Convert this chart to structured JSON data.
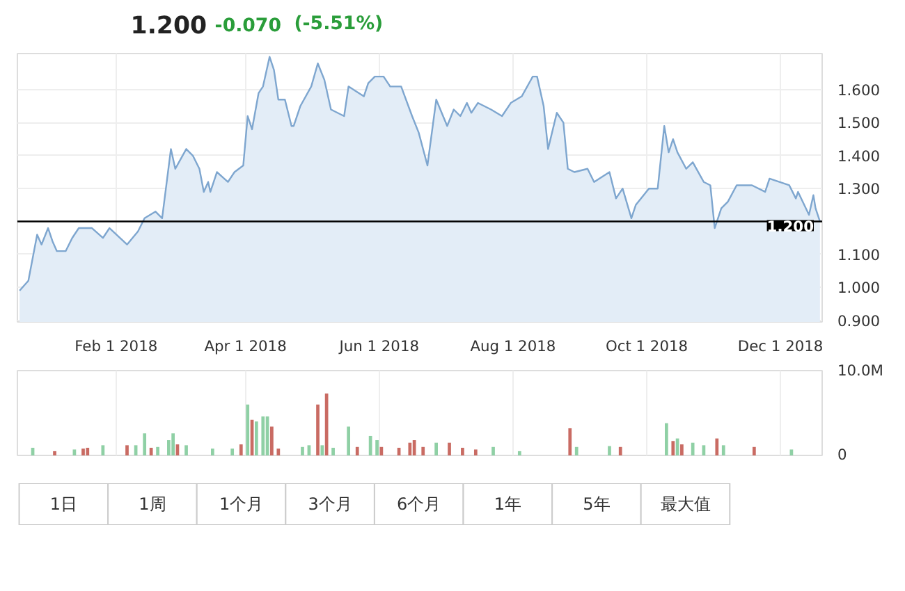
{
  "chart_data": [
    {
      "type": "area",
      "annotations": [
        "1.200",
        "-0.070",
        "(-5.51%)"
      ],
      "xlim": [
        "2017-12-18",
        "2018-12-20"
      ],
      "xticks": [
        {
          "value": "2018-02-01",
          "label": "Feb 1 2018"
        },
        {
          "value": "2018-04-01",
          "label": "Apr 1 2018"
        },
        {
          "value": "2018-06-01",
          "label": "Jun 1 2018"
        },
        {
          "value": "2018-08-01",
          "label": "Aug 1 2018"
        },
        {
          "value": "2018-10-01",
          "label": "Oct 1 2018"
        },
        {
          "value": "2018-12-01",
          "label": "Dec 1 2018"
        }
      ],
      "ylim": [
        0.895,
        1.71
      ],
      "yticks": [
        {
          "value": 0.9,
          "label": "0.900"
        },
        {
          "value": 1.0,
          "label": "1.000"
        },
        {
          "value": 1.1,
          "label": "1.100"
        },
        {
          "value": 1.3,
          "label": "1.300"
        },
        {
          "value": 1.4,
          "label": "1.400"
        },
        {
          "value": 1.5,
          "label": "1.500"
        },
        {
          "value": 1.6,
          "label": "1.600"
        }
      ],
      "grid": true,
      "ref_lines": [
        {
          "axis": "y",
          "value": 1.2,
          "label": "1.200",
          "color": "#000000"
        }
      ],
      "series": [
        {
          "color": "#7ea6cf",
          "x": [
            "2017-12-19",
            "2017-12-23",
            "2017-12-27",
            "2017-12-29",
            "2018-01-01",
            "2018-01-03",
            "2018-01-05",
            "2018-01-09",
            "2018-01-12",
            "2018-01-15",
            "2018-01-21",
            "2018-01-26",
            "2018-01-29",
            "2018-02-06",
            "2018-02-11",
            "2018-02-14",
            "2018-02-19",
            "2018-02-22",
            "2018-02-26",
            "2018-02-28",
            "2018-03-05",
            "2018-03-08",
            "2018-03-11",
            "2018-03-13",
            "2018-03-15",
            "2018-03-16",
            "2018-03-19",
            "2018-03-24",
            "2018-03-27",
            "2018-03-31",
            "2018-04-02",
            "2018-04-04",
            "2018-04-07",
            "2018-04-09",
            "2018-04-12",
            "2018-04-14",
            "2018-04-16",
            "2018-04-19",
            "2018-04-22",
            "2018-04-23",
            "2018-04-26",
            "2018-05-01",
            "2018-05-04",
            "2018-05-07",
            "2018-05-10",
            "2018-05-13",
            "2018-05-16",
            "2018-05-18",
            "2018-05-25",
            "2018-05-27",
            "2018-05-30",
            "2018-06-03",
            "2018-06-06",
            "2018-06-11",
            "2018-06-16",
            "2018-06-19",
            "2018-06-23",
            "2018-06-27",
            "2018-07-02",
            "2018-07-05",
            "2018-07-08",
            "2018-07-11",
            "2018-07-13",
            "2018-07-16",
            "2018-07-22",
            "2018-07-27",
            "2018-07-31",
            "2018-08-05",
            "2018-08-10",
            "2018-08-12",
            "2018-08-15",
            "2018-08-17",
            "2018-08-21",
            "2018-08-24",
            "2018-08-26",
            "2018-08-29",
            "2018-09-04",
            "2018-09-07",
            "2018-09-14",
            "2018-09-17",
            "2018-09-20",
            "2018-09-24",
            "2018-09-26",
            "2018-10-02",
            "2018-10-06",
            "2018-10-09",
            "2018-10-11",
            "2018-10-13",
            "2018-10-15",
            "2018-10-19",
            "2018-10-22",
            "2018-10-27",
            "2018-10-30",
            "2018-11-01",
            "2018-11-04",
            "2018-11-07",
            "2018-11-11",
            "2018-11-18",
            "2018-11-24",
            "2018-11-26",
            "2018-12-05",
            "2018-12-08",
            "2018-12-09",
            "2018-12-14",
            "2018-12-16",
            "2018-12-17",
            "2018-12-19"
          ],
          "values": [
            0.99,
            1.02,
            1.16,
            1.13,
            1.18,
            1.14,
            1.11,
            1.11,
            1.15,
            1.18,
            1.18,
            1.15,
            1.18,
            1.13,
            1.17,
            1.21,
            1.23,
            1.21,
            1.42,
            1.36,
            1.42,
            1.4,
            1.36,
            1.29,
            1.32,
            1.29,
            1.35,
            1.32,
            1.35,
            1.37,
            1.52,
            1.48,
            1.59,
            1.61,
            1.7,
            1.66,
            1.57,
            1.57,
            1.49,
            1.49,
            1.55,
            1.61,
            1.68,
            1.63,
            1.54,
            1.53,
            1.52,
            1.61,
            1.58,
            1.62,
            1.64,
            1.64,
            1.61,
            1.61,
            1.52,
            1.47,
            1.37,
            1.57,
            1.49,
            1.54,
            1.52,
            1.56,
            1.53,
            1.56,
            1.54,
            1.52,
            1.56,
            1.58,
            1.64,
            1.64,
            1.55,
            1.42,
            1.53,
            1.5,
            1.36,
            1.35,
            1.36,
            1.32,
            1.35,
            1.27,
            1.3,
            1.21,
            1.25,
            1.3,
            1.3,
            1.49,
            1.41,
            1.45,
            1.41,
            1.36,
            1.38,
            1.32,
            1.31,
            1.18,
            1.24,
            1.26,
            1.31,
            1.31,
            1.29,
            1.33,
            1.31,
            1.27,
            1.29,
            1.22,
            1.28,
            1.24,
            1.2
          ]
        }
      ]
    },
    {
      "type": "bar",
      "tick_labels": "y",
      "grid": true,
      "xlim": [
        "2017-12-18",
        "2018-12-20"
      ],
      "xticks": [
        {
          "value": "2018-02-01",
          "label": null
        },
        {
          "value": "2018-04-01",
          "label": null
        },
        {
          "value": "2018-06-01",
          "label": null
        },
        {
          "value": "2018-08-01",
          "label": null
        },
        {
          "value": "2018-10-01",
          "label": null
        },
        {
          "value": "2018-12-01",
          "label": null
        }
      ],
      "ylim": [
        0,
        10
      ],
      "yticks": [
        0,
        {
          "value": 10,
          "label": "10.0M"
        }
      ],
      "x": [
        "2017-12-25",
        "2018-01-04",
        "2018-01-13",
        "2018-01-17",
        "2018-01-19",
        "2018-01-26",
        "2018-02-06",
        "2018-02-10",
        "2018-02-14",
        "2018-02-17",
        "2018-02-20",
        "2018-02-25",
        "2018-02-27",
        "2018-03-01",
        "2018-03-05",
        "2018-03-17",
        "2018-03-26",
        "2018-03-30",
        "2018-04-02",
        "2018-04-04",
        "2018-04-06",
        "2018-04-09",
        "2018-04-11",
        "2018-04-13",
        "2018-04-16",
        "2018-04-27",
        "2018-04-30",
        "2018-05-04",
        "2018-05-06",
        "2018-05-08",
        "2018-05-11",
        "2018-05-18",
        "2018-05-22",
        "2018-05-28",
        "2018-05-31",
        "2018-06-02",
        "2018-06-10",
        "2018-06-15",
        "2018-06-17",
        "2018-06-21",
        "2018-06-27",
        "2018-07-03",
        "2018-07-09",
        "2018-07-15",
        "2018-07-23",
        "2018-08-04",
        "2018-08-27",
        "2018-08-30",
        "2018-09-14",
        "2018-09-19",
        "2018-10-10",
        "2018-10-13",
        "2018-10-15",
        "2018-10-17",
        "2018-10-22",
        "2018-10-27",
        "2018-11-02",
        "2018-11-05",
        "2018-11-19",
        "2018-12-06"
      ],
      "values": [
        0.9,
        0.5,
        0.7,
        0.8,
        0.9,
        1.2,
        1.2,
        1.2,
        2.6,
        0.9,
        1.0,
        1.8,
        2.6,
        1.3,
        1.2,
        0.8,
        0.8,
        1.3,
        6.0,
        4.2,
        4.0,
        4.6,
        4.6,
        3.4,
        0.8,
        1.0,
        1.2,
        6.0,
        1.2,
        7.3,
        0.9,
        3.4,
        1.0,
        2.3,
        1.8,
        1.0,
        0.9,
        1.5,
        1.8,
        1.0,
        1.5,
        1.5,
        0.9,
        0.7,
        1.0,
        0.5,
        3.2,
        1.0,
        1.1,
        1.0,
        3.8,
        1.7,
        2.0,
        1.3,
        1.5,
        1.2,
        2.0,
        1.2,
        1.0,
        0.7
      ],
      "colors": [
        "#8fd0a5",
        "#c96b63",
        "#8fd0a5",
        "#c96b63",
        "#c96b63",
        "#8fd0a5",
        "#c96b63",
        "#8fd0a5",
        "#8fd0a5",
        "#c96b63",
        "#8fd0a5",
        "#8fd0a5",
        "#8fd0a5",
        "#c96b63",
        "#8fd0a5",
        "#8fd0a5",
        "#8fd0a5",
        "#c96b63",
        "#8fd0a5",
        "#c96b63",
        "#8fd0a5",
        "#8fd0a5",
        "#8fd0a5",
        "#c96b63",
        "#c96b63",
        "#8fd0a5",
        "#8fd0a5",
        "#c96b63",
        "#8fd0a5",
        "#c96b63",
        "#8fd0a5",
        "#8fd0a5",
        "#c96b63",
        "#8fd0a5",
        "#8fd0a5",
        "#c96b63",
        "#c96b63",
        "#c96b63",
        "#c96b63",
        "#c96b63",
        "#8fd0a5",
        "#c96b63",
        "#c96b63",
        "#c96b63",
        "#8fd0a5",
        "#8fd0a5",
        "#c96b63",
        "#8fd0a5",
        "#8fd0a5",
        "#c96b63",
        "#8fd0a5",
        "#c96b63",
        "#8fd0a5",
        "#c96b63",
        "#8fd0a5",
        "#8fd0a5",
        "#c96b63",
        "#8fd0a5",
        "#c96b63",
        "#8fd0a5"
      ]
    },
    {
      "type": "other",
      "annotations": [
        "1日",
        "1周",
        "1个月",
        "3个月",
        "6个月",
        "1年",
        "5年",
        "最大值"
      ]
    }
  ]
}
